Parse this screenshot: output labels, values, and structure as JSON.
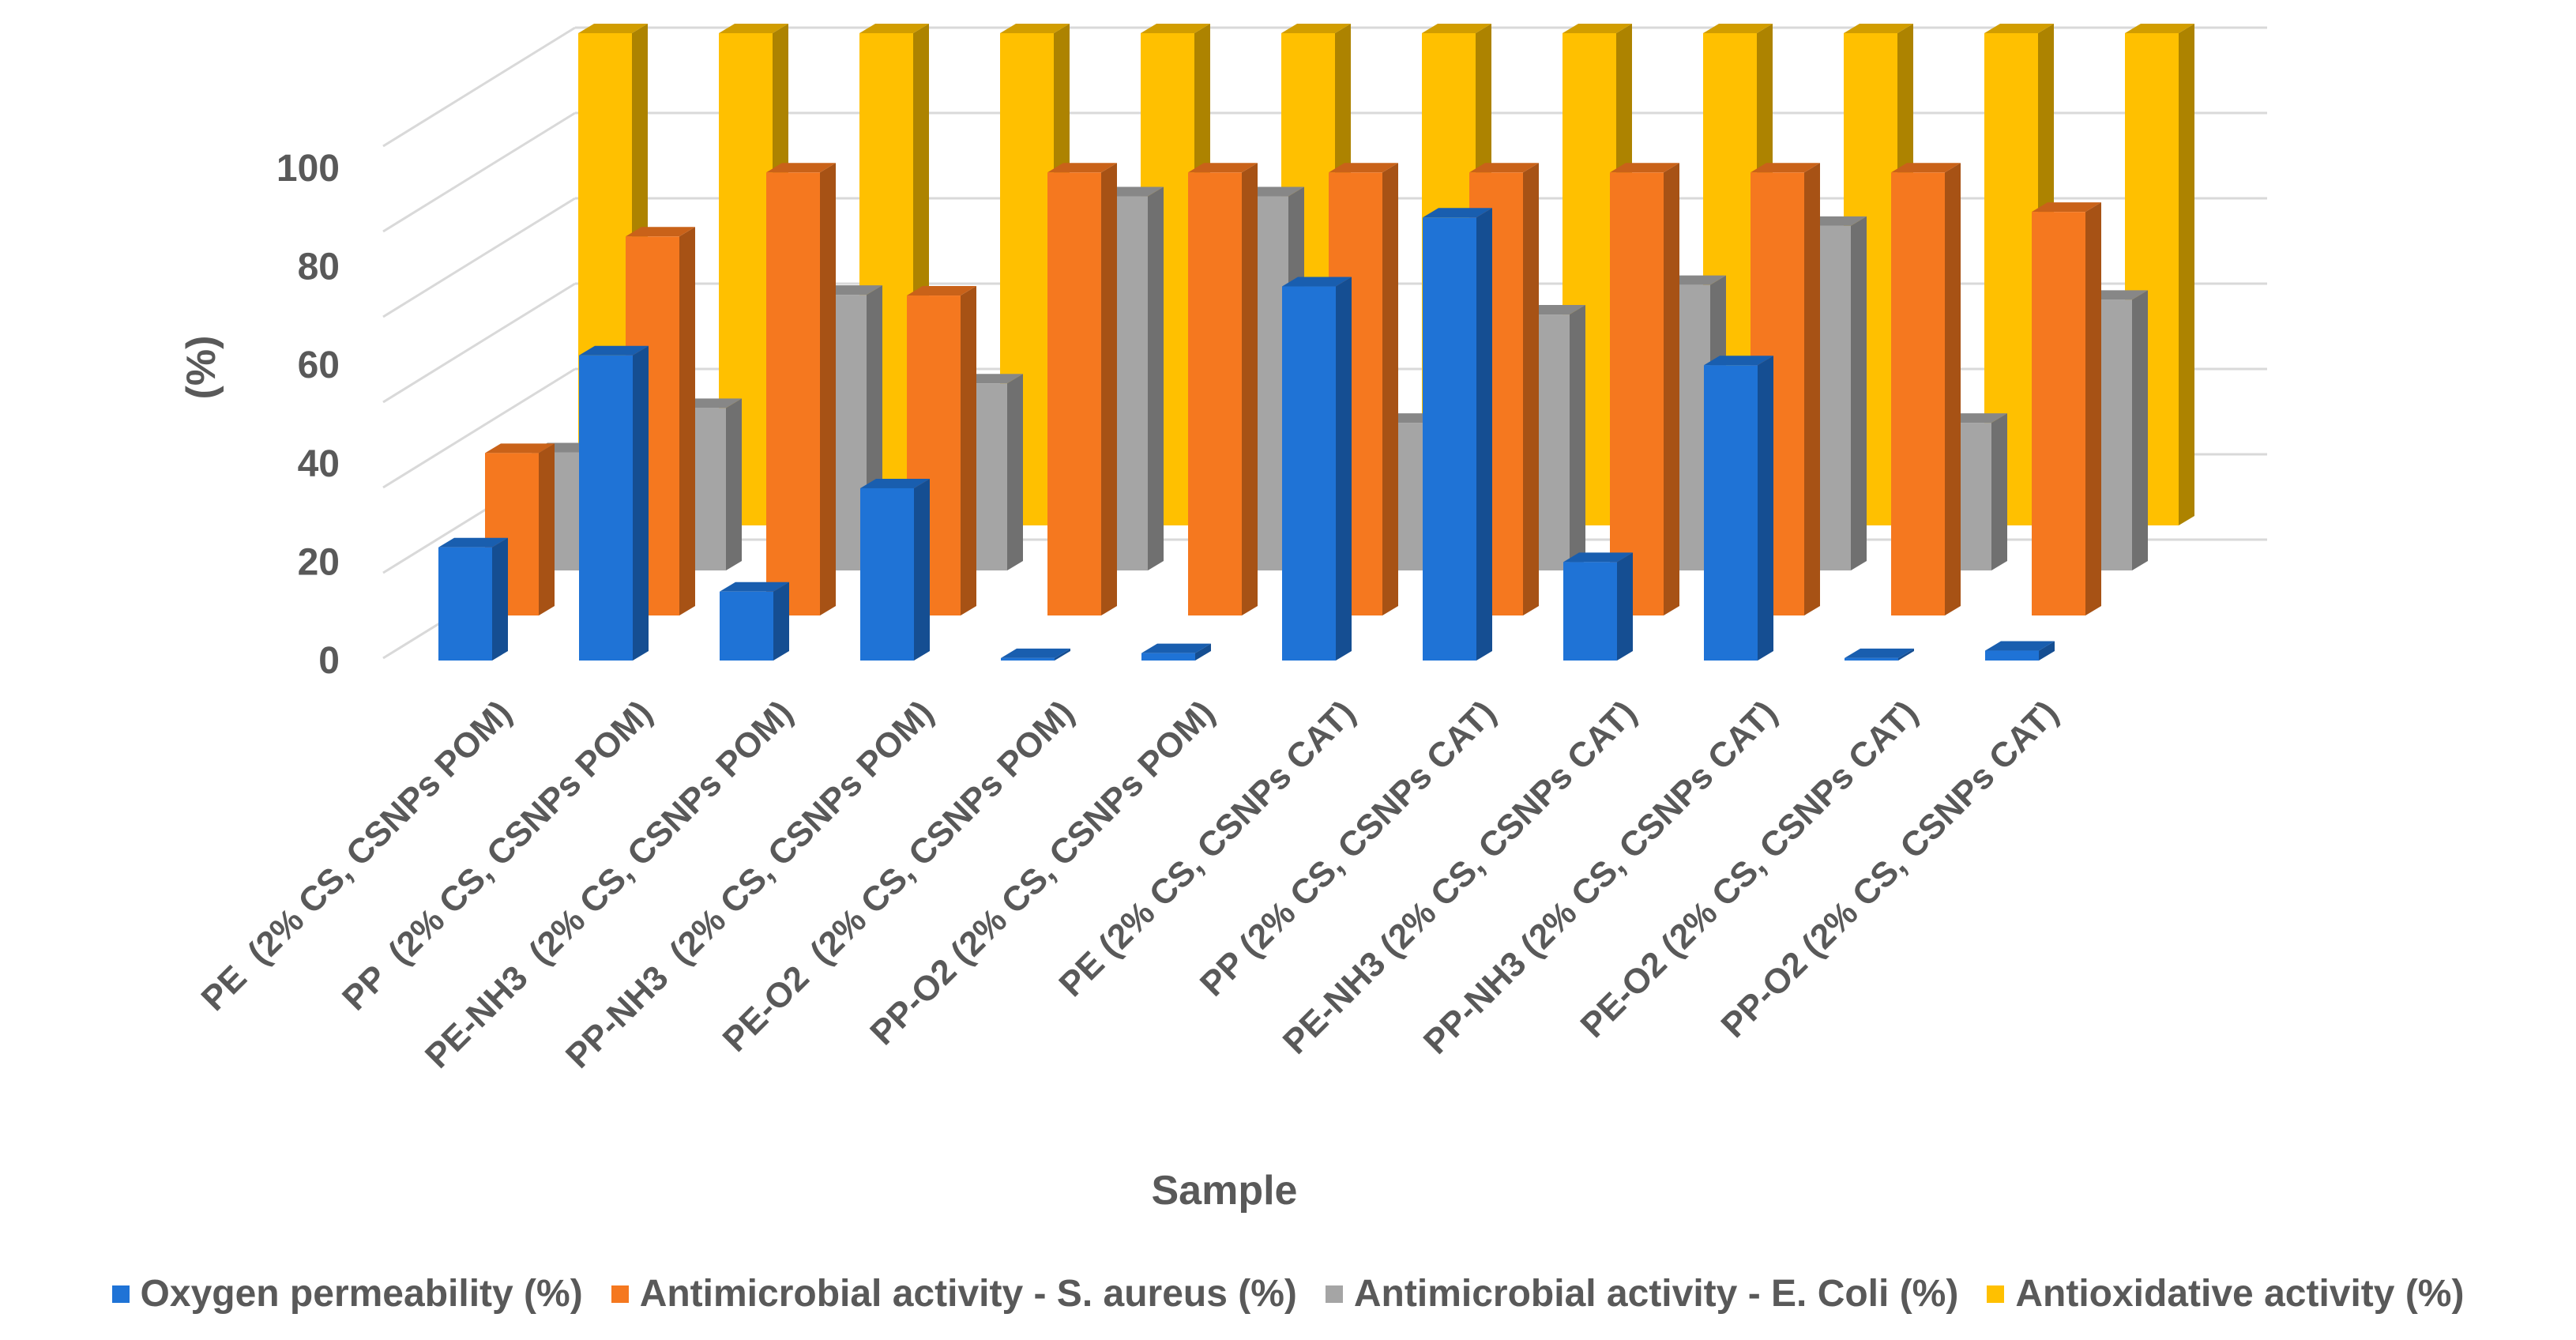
{
  "chart_data": {
    "type": "bar",
    "title": "",
    "xlabel": "Sample",
    "ylabel": "(%)",
    "ylim": [
      0,
      100
    ],
    "yticks": [
      0,
      20,
      40,
      60,
      80,
      100
    ],
    "grid": true,
    "legend_position": "bottom",
    "categories": [
      "PE  (2% CS, CSNPs POM)",
      "PP  (2% CS, CSNPs POM)",
      "PE-NH3  (2% CS, CSNPs POM)",
      "PP-NH3  (2% CS, CSNPs POM)",
      "PE-O2  (2% CS, CSNPs POM)",
      "PP-O2 (2% CS, CSNPs POM)",
      "PE (2% CS, CSNPs CAT)",
      "PP (2% CS, CSNPs CAT)",
      "PE-NH3 (2% CS, CSNPs CAT)",
      "PP-NH3 (2% CS, CSNPs CAT)",
      "PE-O2 (2% CS, CSNPs CAT)",
      "PP-O2 (2% CS, CSNPs CAT)"
    ],
    "series": [
      {
        "name": "Oxygen permeability (%)",
        "color": "#1F73D6",
        "values": [
          23,
          62,
          14,
          35,
          0.5,
          1.5,
          76,
          90,
          20,
          60,
          0.5,
          2
        ]
      },
      {
        "name": "Antimicrobial activity - S. aureus (%)",
        "color": "#F5781F",
        "values": [
          33,
          77,
          90,
          65,
          90,
          90,
          90,
          90,
          90,
          90,
          90,
          82
        ]
      },
      {
        "name": "Antimicrobial activity - E. Coli (%)",
        "color": "#A5A5A5",
        "values": [
          24,
          33,
          56,
          38,
          76,
          76,
          30,
          52,
          58,
          70,
          30,
          55
        ]
      },
      {
        "name": "Antioxidative activity (%)",
        "color": "#FFC000",
        "values": [
          100,
          100,
          100,
          100,
          100,
          100,
          100,
          100,
          100,
          100,
          100,
          100
        ]
      }
    ]
  }
}
